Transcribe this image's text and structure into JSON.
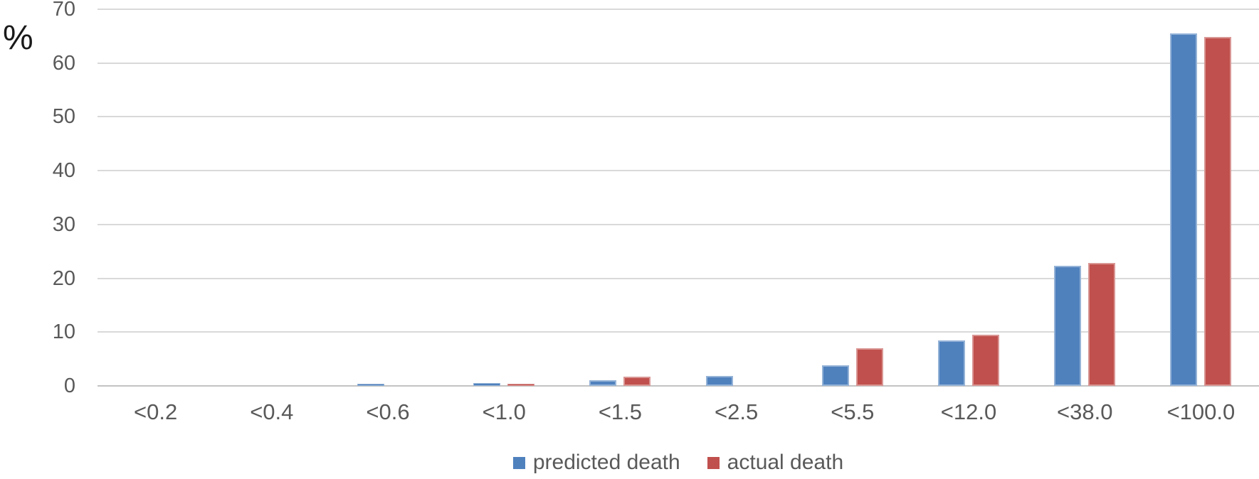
{
  "chart_data": {
    "type": "bar",
    "title": "",
    "xlabel": "",
    "ylabel": "%",
    "categories": [
      "<0.2",
      "<0.4",
      "<0.6",
      "<1.0",
      "<1.5",
      "<2.5",
      "<5.5",
      "<12.0",
      "<38.0",
      "<100.0"
    ],
    "series": [
      {
        "name": "predicted death",
        "color": "#4F81BD",
        "border_color": "#95B3D7",
        "values": [
          0,
          0,
          0.4,
          0.6,
          1.0,
          1.9,
          3.8,
          8.5,
          22.3,
          65.5
        ]
      },
      {
        "name": "actual death",
        "color": "#C0504D",
        "border_color": "#D99694",
        "values": [
          0,
          0,
          0,
          0.4,
          1.7,
          0,
          7.0,
          9.5,
          22.8,
          64.9
        ]
      }
    ],
    "y_axis": {
      "min": 0,
      "max": 70,
      "step": 10,
      "tick_labels": [
        "0",
        "10",
        "20",
        "30",
        "40",
        "50",
        "60",
        "70"
      ]
    },
    "grid": true,
    "legend_position": "bottom"
  },
  "styles": {
    "grid_color": "#D9D9D9",
    "axis_line_color": "#C3C3C3",
    "tick_text_color": "#595959",
    "unit_label_color": "#1a1a1a",
    "background": "#FFFFFF"
  }
}
